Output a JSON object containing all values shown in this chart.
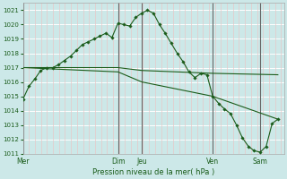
{
  "xlabel": "Pression niveau de la mer( hPa )",
  "bg_color": "#cce8e8",
  "grid_color_major": "#ffffff",
  "grid_color_minor": "#e8c8c8",
  "line_color": "#1a5c1a",
  "ylim": [
    1011,
    1021.5
  ],
  "yticks": [
    1011,
    1012,
    1013,
    1014,
    1015,
    1016,
    1017,
    1018,
    1019,
    1020,
    1021
  ],
  "day_labels": [
    "Mer",
    "Dim",
    "Jeu",
    "Ven",
    "Sam"
  ],
  "day_positions": [
    0.0,
    0.364,
    0.455,
    0.727,
    0.909
  ],
  "vert_line_color": "#666666",
  "series1_x": [
    0.0,
    0.023,
    0.045,
    0.068,
    0.091,
    0.114,
    0.136,
    0.159,
    0.182,
    0.205,
    0.227,
    0.25,
    0.273,
    0.295,
    0.318,
    0.341,
    0.364,
    0.386,
    0.409,
    0.432,
    0.455,
    0.477,
    0.5,
    0.523,
    0.545,
    0.568,
    0.591,
    0.614,
    0.636,
    0.659,
    0.682,
    0.705,
    0.727,
    0.75,
    0.773,
    0.795,
    0.818,
    0.841,
    0.864,
    0.886,
    0.909,
    0.932,
    0.955,
    0.977
  ],
  "series1_y": [
    1014.8,
    1015.7,
    1016.2,
    1016.8,
    1017.0,
    1017.0,
    1017.2,
    1017.5,
    1017.8,
    1018.2,
    1018.6,
    1018.8,
    1019.0,
    1019.2,
    1019.4,
    1019.1,
    1020.1,
    1020.0,
    1019.9,
    1020.5,
    1020.8,
    1021.0,
    1020.8,
    1020.0,
    1019.4,
    1018.7,
    1018.0,
    1017.4,
    1016.7,
    1016.3,
    1016.6,
    1016.5,
    1015.0,
    1014.5,
    1014.1,
    1013.8,
    1013.0,
    1012.1,
    1011.5,
    1011.2,
    1011.1,
    1011.5,
    1013.1,
    1013.4
  ],
  "series2_x": [
    0.0,
    0.364,
    0.455,
    0.727,
    0.977
  ],
  "series2_y": [
    1017.0,
    1017.0,
    1016.8,
    1016.6,
    1016.5
  ],
  "series3_x": [
    0.0,
    0.364,
    0.455,
    0.727,
    0.977
  ],
  "series3_y": [
    1017.0,
    1016.7,
    1016.0,
    1015.0,
    1013.4
  ],
  "minor_xtick_step": 0.023
}
